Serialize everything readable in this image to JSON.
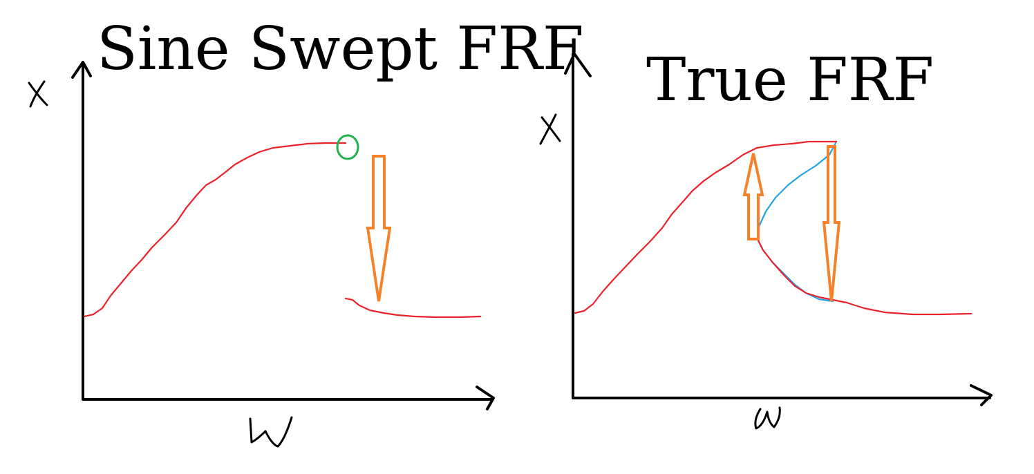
{
  "panels": [
    {
      "title": "Sine Swept FRF",
      "ylabel": "x",
      "xlabel": "ω"
    },
    {
      "title": "True FRF",
      "ylabel": "x",
      "xlabel": "ω"
    }
  ],
  "colors": {
    "response_curve": "#e8232b",
    "unstable_branch": "#21a3e3",
    "jump_arrow": "#f5822a",
    "jump_point_marker": "#22b14c",
    "axes": "#000000"
  }
}
